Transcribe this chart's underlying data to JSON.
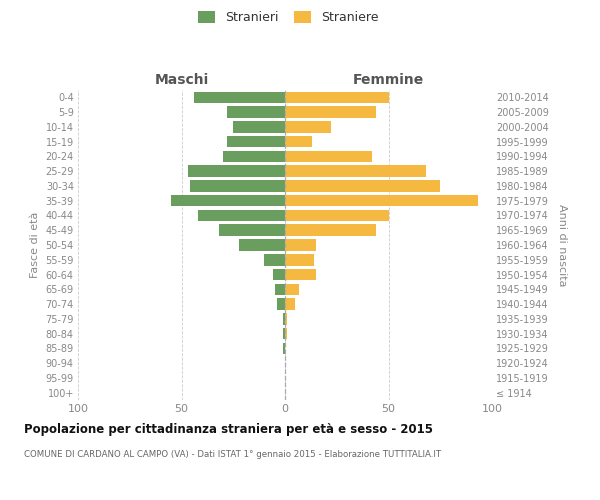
{
  "age_groups": [
    "100+",
    "95-99",
    "90-94",
    "85-89",
    "80-84",
    "75-79",
    "70-74",
    "65-69",
    "60-64",
    "55-59",
    "50-54",
    "45-49",
    "40-44",
    "35-39",
    "30-34",
    "25-29",
    "20-24",
    "15-19",
    "10-14",
    "5-9",
    "0-4"
  ],
  "birth_years": [
    "≤ 1914",
    "1915-1919",
    "1920-1924",
    "1925-1929",
    "1930-1934",
    "1935-1939",
    "1940-1944",
    "1945-1949",
    "1950-1954",
    "1955-1959",
    "1960-1964",
    "1965-1969",
    "1970-1974",
    "1975-1979",
    "1980-1984",
    "1985-1989",
    "1990-1994",
    "1995-1999",
    "2000-2004",
    "2005-2009",
    "2010-2014"
  ],
  "maschi": [
    0,
    0,
    0,
    1,
    1,
    1,
    4,
    5,
    6,
    10,
    22,
    32,
    42,
    55,
    46,
    47,
    30,
    28,
    25,
    28,
    44
  ],
  "femmine": [
    0,
    0,
    0,
    0,
    1,
    1,
    5,
    7,
    15,
    14,
    15,
    44,
    50,
    93,
    75,
    68,
    42,
    13,
    22,
    44,
    50
  ],
  "maschi_color": "#6a9e5e",
  "femmine_color": "#f5b942",
  "bar_height": 0.78,
  "xlim": 100,
  "title": "Popolazione per cittadinanza straniera per età e sesso - 2015",
  "subtitle": "COMUNE DI CARDANO AL CAMPO (VA) - Dati ISTAT 1° gennaio 2015 - Elaborazione TUTTITALIA.IT",
  "header_left": "Maschi",
  "header_right": "Femmine",
  "ylabel_left": "Fasce di età",
  "ylabel_right": "Anni di nascita",
  "legend_maschi": "Stranieri",
  "legend_femmine": "Straniere",
  "bg_color": "#ffffff",
  "grid_color": "#cccccc",
  "label_color": "#888888",
  "header_color": "#555555",
  "title_color": "#111111",
  "subtitle_color": "#666666"
}
